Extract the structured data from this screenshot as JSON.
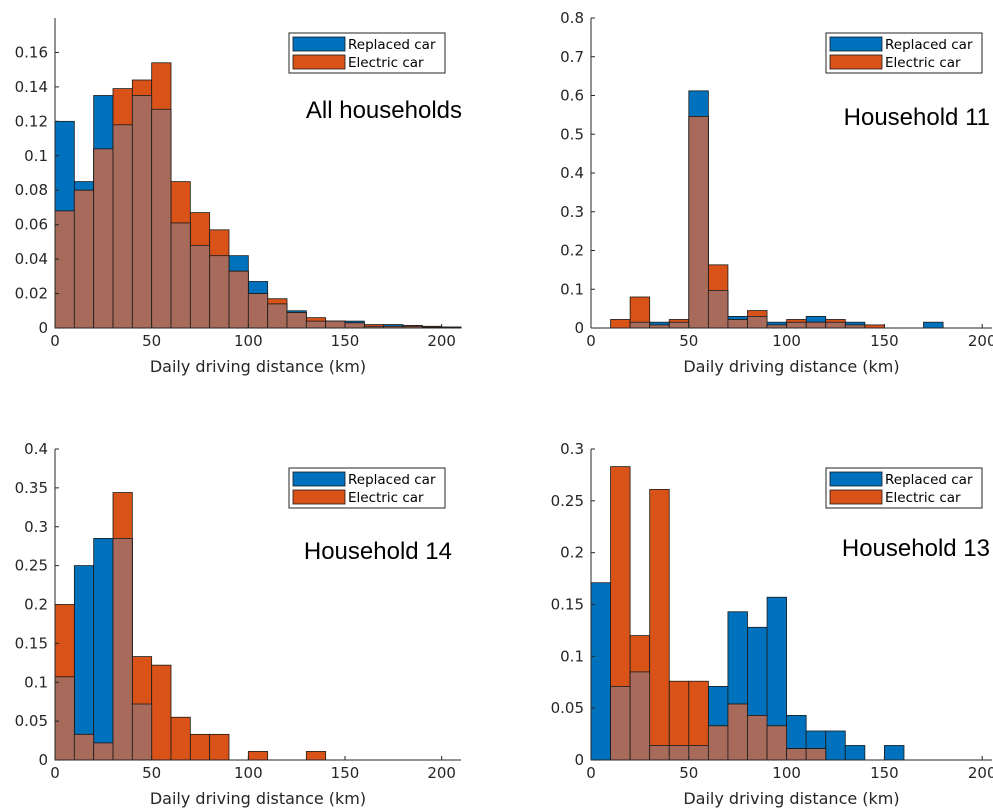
{
  "colors": {
    "replaced": "#0072bd",
    "electric": "#d95319",
    "overlap": "#a86a5b",
    "axis": "#262626"
  },
  "chart_data": [
    {
      "type": "bar",
      "title": "All households",
      "xlabel": "Daily driving distance (km)",
      "ylabel": "",
      "xlim": [
        0,
        210
      ],
      "ylim": [
        0,
        0.18
      ],
      "xticks": [
        0,
        50,
        100,
        150,
        200
      ],
      "yticks": [
        0,
        0.02,
        0.04,
        0.06,
        0.08,
        0.1,
        0.12,
        0.14,
        0.16
      ],
      "ytick_labels": [
        "0",
        "0.02",
        "0.04",
        "0.06",
        "0.08",
        "0.1",
        "0.12",
        "0.14",
        "0.16"
      ],
      "bin_width": 10,
      "legend_position": "top-right",
      "series": [
        {
          "name": "Replaced car",
          "bin_starts": [
            0,
            10,
            20,
            30,
            40,
            50,
            60,
            70,
            80,
            90,
            100,
            110,
            120,
            130,
            140,
            150,
            160,
            170,
            180,
            190,
            200
          ],
          "values": [
            0.12,
            0.085,
            0.135,
            0.118,
            0.135,
            0.127,
            0.061,
            0.048,
            0.042,
            0.042,
            0.027,
            0.014,
            0.01,
            0.004,
            0.004,
            0.004,
            0.001,
            0.002,
            0.001,
            0.0005,
            0.0005
          ]
        },
        {
          "name": "Electric car",
          "bin_starts": [
            0,
            10,
            20,
            30,
            40,
            50,
            60,
            70,
            80,
            90,
            100,
            110,
            120,
            130,
            140,
            150,
            160,
            170,
            180,
            190,
            200
          ],
          "values": [
            0.068,
            0.08,
            0.104,
            0.139,
            0.144,
            0.154,
            0.085,
            0.067,
            0.057,
            0.033,
            0.02,
            0.017,
            0.009,
            0.006,
            0.004,
            0.003,
            0.002,
            0.001,
            0.0015,
            0.001,
            0.0005
          ]
        }
      ]
    },
    {
      "type": "bar",
      "title": "Household 11",
      "xlabel": "Daily driving distance (km)",
      "ylabel": "",
      "xlim": [
        0,
        205
      ],
      "ylim": [
        0,
        0.8
      ],
      "xticks": [
        0,
        50,
        100,
        150,
        200
      ],
      "yticks": [
        0,
        0.1,
        0.2,
        0.3,
        0.4,
        0.5,
        0.6,
        0.7,
        0.8
      ],
      "ytick_labels": [
        "0",
        "0.1",
        "0.2",
        "0.3",
        "0.4",
        "0.5",
        "0.6",
        "0.7",
        "0.8"
      ],
      "bin_width": 10,
      "legend_position": "top-right",
      "series": [
        {
          "name": "Replaced car",
          "bin_starts": [
            10,
            20,
            30,
            40,
            50,
            60,
            70,
            80,
            90,
            100,
            110,
            120,
            130,
            140,
            150,
            160,
            170
          ],
          "values": [
            0,
            0.015,
            0.015,
            0.015,
            0.612,
            0.097,
            0.03,
            0.03,
            0.015,
            0.015,
            0.03,
            0.015,
            0.015,
            0,
            0,
            0,
            0.015
          ]
        },
        {
          "name": "Electric car",
          "bin_starts": [
            10,
            20,
            30,
            40,
            50,
            60,
            70,
            80,
            90,
            100,
            110,
            120,
            130,
            140,
            150,
            160,
            170
          ],
          "values": [
            0.022,
            0.08,
            0.008,
            0.022,
            0.546,
            0.163,
            0.022,
            0.045,
            0.008,
            0.022,
            0.015,
            0.022,
            0.008,
            0.008,
            0,
            0,
            0
          ]
        }
      ]
    },
    {
      "type": "bar",
      "title": "Household 14",
      "xlabel": "Daily driving distance (km)",
      "ylabel": "",
      "xlim": [
        0,
        210
      ],
      "ylim": [
        0,
        0.4
      ],
      "xticks": [
        0,
        50,
        100,
        150,
        200
      ],
      "yticks": [
        0,
        0.05,
        0.1,
        0.15,
        0.2,
        0.25,
        0.3,
        0.35,
        0.4
      ],
      "ytick_labels": [
        "0",
        "0.05",
        "0.1",
        "0.15",
        "0.2",
        "0.25",
        "0.3",
        "0.35",
        "0.4"
      ],
      "bin_width": 10,
      "legend_position": "top-right",
      "series": [
        {
          "name": "Replaced car",
          "bin_starts": [
            0,
            10,
            20,
            30,
            40,
            50,
            60,
            70,
            80,
            90,
            100,
            110,
            120,
            130
          ],
          "values": [
            0.107,
            0.25,
            0.285,
            0.285,
            0.072,
            0,
            0,
            0,
            0,
            0,
            0,
            0,
            0,
            0
          ]
        },
        {
          "name": "Electric car",
          "bin_starts": [
            0,
            10,
            20,
            30,
            40,
            50,
            60,
            70,
            80,
            90,
            100,
            110,
            120,
            130
          ],
          "values": [
            0.2,
            0.033,
            0.022,
            0.344,
            0.133,
            0.122,
            0.055,
            0.033,
            0.033,
            0,
            0.011,
            0,
            0,
            0.011
          ]
        }
      ]
    },
    {
      "type": "bar",
      "title": "Household 13",
      "xlabel": "Daily driving distance (km)",
      "ylabel": "",
      "xlim": [
        0,
        205
      ],
      "ylim": [
        0,
        0.3
      ],
      "xticks": [
        0,
        50,
        100,
        150,
        200
      ],
      "yticks": [
        0,
        0.05,
        0.1,
        0.15,
        0.2,
        0.25,
        0.3
      ],
      "ytick_labels": [
        "0",
        "0.05",
        "0.1",
        "0.15",
        "0.2",
        "0.25",
        "0.3"
      ],
      "bin_width": 10,
      "legend_position": "top-right",
      "series": [
        {
          "name": "Replaced car",
          "bin_starts": [
            0,
            10,
            20,
            30,
            40,
            50,
            60,
            70,
            80,
            90,
            100,
            110,
            120,
            130,
            140,
            150
          ],
          "values": [
            0.171,
            0.071,
            0.085,
            0.014,
            0.014,
            0.014,
            0.071,
            0.143,
            0.128,
            0.157,
            0.043,
            0.028,
            0.028,
            0.014,
            0,
            0.014
          ]
        },
        {
          "name": "Electric car",
          "bin_starts": [
            0,
            10,
            20,
            30,
            40,
            50,
            60,
            70,
            80,
            90,
            100,
            110,
            120,
            130,
            140,
            150
          ],
          "values": [
            0,
            0.283,
            0.12,
            0.261,
            0.076,
            0.076,
            0.033,
            0.054,
            0.043,
            0.033,
            0.011,
            0.011,
            0,
            0,
            0,
            0
          ]
        }
      ]
    }
  ]
}
